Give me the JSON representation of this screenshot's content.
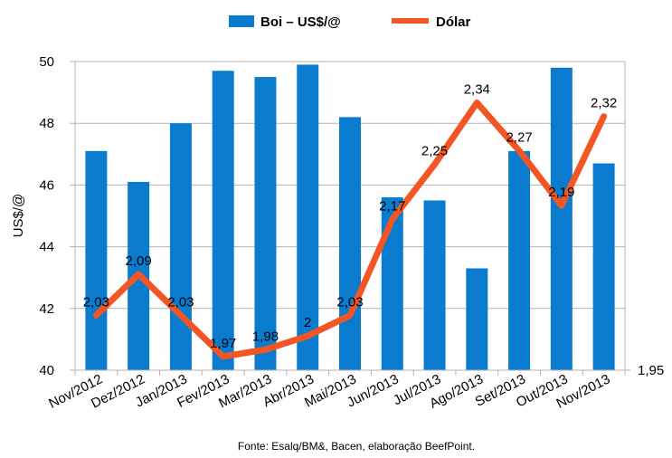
{
  "chart_data": {
    "type": "bar",
    "categories": [
      "Nov/2012",
      "Dez/2012",
      "Jan/2013",
      "Fev/2013",
      "Mar/2013",
      "Abr/2013",
      "Mai/2013",
      "Jun/2013",
      "Jul/2013",
      "Ago/2013",
      "Set/2013",
      "Out/2013",
      "Nov/2013"
    ],
    "series": [
      {
        "name": "Boi – US$/@",
        "type": "bar",
        "axis": "left",
        "color": "#0a7cd0",
        "values": [
          47.1,
          46.1,
          48.0,
          49.7,
          49.5,
          49.9,
          48.2,
          45.6,
          45.5,
          43.3,
          47.1,
          49.8,
          46.7
        ]
      },
      {
        "name": "Dólar",
        "type": "line",
        "axis": "right",
        "color": "#f35523",
        "values": [
          2.03,
          2.09,
          2.03,
          1.97,
          1.98,
          2.0,
          2.03,
          2.17,
          2.25,
          2.34,
          2.27,
          2.19,
          2.32
        ],
        "labels": [
          "2,03",
          "2,09",
          "2,03",
          "1,97",
          "1,98",
          "2",
          "2,03",
          "2,17",
          "2,25",
          "2,34",
          "2,27",
          "2,19",
          "2,32"
        ]
      }
    ],
    "ylabel": "US$/@",
    "ylim": [
      40,
      50
    ],
    "yticks": [
      "40",
      "42",
      "44",
      "46",
      "48",
      "50"
    ],
    "y2lim": [
      1.95,
      2.4
    ],
    "y2ticks": [
      "1,95"
    ],
    "grid": true,
    "legend": "top",
    "source": "Fonte: Esalq/BM&, Bacen, elaboração BeefPoint."
  }
}
